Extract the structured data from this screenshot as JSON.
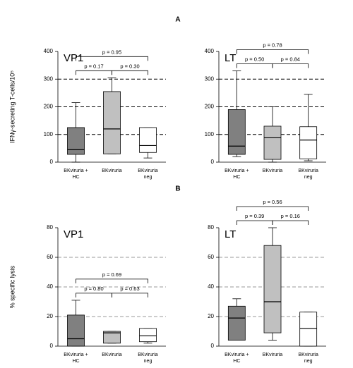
{
  "panel_labels": [
    "A",
    "B"
  ],
  "chart_data": [
    {
      "type": "box",
      "title": "VP1",
      "ylabel": "IFNγ-secreting T-cells/10⁵",
      "categories": [
        "BKviruria +\nHC",
        "BKviruria",
        "BKviruria\nneg"
      ],
      "colors": [
        "#808080",
        "#c0c0c0",
        "#ffffff"
      ],
      "boxes": [
        {
          "min": 0,
          "q1": 28,
          "median": 45,
          "q3": 125,
          "max": 215
        },
        {
          "min": 30,
          "q1": 30,
          "median": 120,
          "q3": 255,
          "max": 305
        },
        {
          "min": 15,
          "q1": 35,
          "median": 60,
          "q3": 125,
          "max": 125
        }
      ],
      "comparisons": [
        {
          "between": [
            0,
            2
          ],
          "label": "p = 0.95"
        },
        {
          "between": [
            0,
            1
          ],
          "label": "p = 0.17"
        },
        {
          "between": [
            1,
            2
          ],
          "label": "p = 0.30"
        }
      ],
      "ylim": [
        0,
        400
      ],
      "yticks": [
        0,
        100,
        200,
        300,
        400
      ],
      "grid": "dashed",
      "grid_color": "#000000"
    },
    {
      "type": "box",
      "title": "LT",
      "categories": [
        "BKviruria +\nHC",
        "BKviruria",
        "BKviruria\nneg"
      ],
      "colors": [
        "#808080",
        "#c0c0c0",
        "#ffffff"
      ],
      "boxes": [
        {
          "min": 20,
          "q1": 28,
          "median": 58,
          "q3": 190,
          "max": 330
        },
        {
          "min": 0,
          "q1": 10,
          "median": 88,
          "q3": 130,
          "max": 200
        },
        {
          "min": 5,
          "q1": 12,
          "median": 80,
          "q3": 128,
          "max": 245
        }
      ],
      "comparisons": [
        {
          "between": [
            0,
            2
          ],
          "label": "p = 0.78"
        },
        {
          "between": [
            0,
            1
          ],
          "label": "p = 0.50"
        },
        {
          "between": [
            1,
            2
          ],
          "label": "p = 0.84"
        }
      ],
      "ylim": [
        0,
        400
      ],
      "yticks": [
        0,
        100,
        200,
        300,
        400
      ],
      "grid": "dashed",
      "grid_color": "#000000"
    },
    {
      "type": "box",
      "title": "VP1",
      "ylabel": "% specific lysis",
      "categories": [
        "BKviruria +\nHC",
        "BKviruria",
        "BKviruria\nneg"
      ],
      "colors": [
        "#808080",
        "#c0c0c0",
        "#ffffff"
      ],
      "boxes": [
        {
          "min": 0,
          "q1": 0,
          "median": 5,
          "q3": 21,
          "max": 31
        },
        {
          "min": 2,
          "q1": 2,
          "median": 9,
          "q3": 10,
          "max": 10
        },
        {
          "min": 2,
          "q1": 3,
          "median": 7,
          "q3": 12,
          "max": 12
        }
      ],
      "comparisons": [
        {
          "between": [
            0,
            2
          ],
          "label": "p = 0.69"
        },
        {
          "between": [
            0,
            1
          ],
          "label": "p = 0.80"
        },
        {
          "between": [
            1,
            2
          ],
          "label": "p = 0.63"
        }
      ],
      "ylim": [
        0,
        80
      ],
      "yticks": [
        0,
        20,
        40,
        60,
        80
      ],
      "grid": "dashed",
      "grid_color": "#999999"
    },
    {
      "type": "box",
      "title": "LT",
      "categories": [
        "BKviruria +\nHC",
        "BKviruria",
        "BKviruria\nneg"
      ],
      "colors": [
        "#808080",
        "#c0c0c0",
        "#ffffff"
      ],
      "boxes": [
        {
          "min": 4,
          "q1": 4,
          "median": 19,
          "q3": 27,
          "max": 32
        },
        {
          "min": 4,
          "q1": 9,
          "median": 30,
          "q3": 68,
          "max": 80
        },
        {
          "min": 0,
          "q1": 0,
          "median": 12,
          "q3": 23,
          "max": 23
        }
      ],
      "comparisons": [
        {
          "between": [
            0,
            2
          ],
          "label": "p = 0.56"
        },
        {
          "between": [
            0,
            1
          ],
          "label": "p = 0.39"
        },
        {
          "between": [
            1,
            2
          ],
          "label": "p = 0.16"
        }
      ],
      "ylim": [
        0,
        80
      ],
      "yticks": [
        0,
        20,
        40,
        60,
        80
      ],
      "grid": "dashed",
      "grid_color": "#999999"
    }
  ]
}
